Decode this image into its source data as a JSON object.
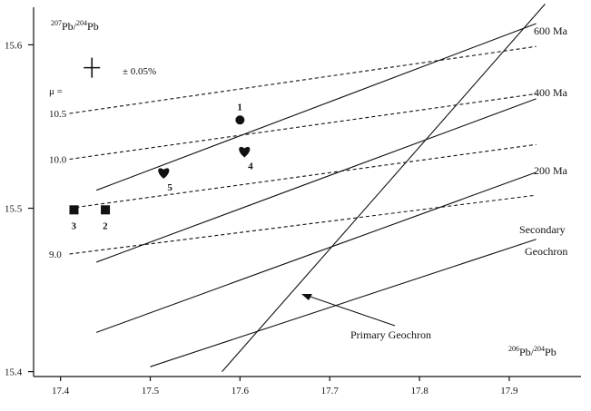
{
  "chart_data": {
    "type": "scatter",
    "xlim": [
      17.37,
      17.98
    ],
    "ylim": [
      15.397,
      15.623
    ],
    "x_ticks": [
      "17.4",
      "17.5",
      "17.6",
      "17.7",
      "17.8",
      "17.9"
    ],
    "y_ticks": [
      {
        "value": 15.4,
        "label": "15.4"
      },
      {
        "value": 15.5,
        "label": "15.5"
      },
      {
        "value": 15.6,
        "label": "15.6"
      }
    ],
    "ylabel": {
      "pre": "207",
      "main1": "Pb/",
      "pre2": "204",
      "main2": "Pb"
    },
    "xlabel": {
      "pre": "206",
      "main1": "Pb/",
      "pre2": "204",
      "main2": "Pb"
    },
    "error_label": "± 0.05%",
    "error_bar": {
      "x": 17.435,
      "y": 15.586
    },
    "mu_header": "μ =",
    "isochrons": [
      {
        "label": "600 Ma",
        "x": [
          17.44,
          17.93
        ],
        "y": [
          15.511,
          15.613
        ]
      },
      {
        "label": "400 Ma",
        "x": [
          17.44,
          17.93
        ],
        "y": [
          15.467,
          15.567
        ]
      },
      {
        "label": "200 Ma",
        "x": [
          17.44,
          17.93
        ],
        "y": [
          15.424,
          15.522
        ]
      },
      {
        "label": "",
        "x": [
          17.5,
          17.93
        ],
        "y": [
          15.403,
          15.481
        ]
      }
    ],
    "mu_lines": [
      {
        "label": "10.5",
        "x": [
          17.41,
          17.93
        ],
        "y": [
          15.558,
          15.599
        ]
      },
      {
        "label": "10.0",
        "x": [
          17.41,
          17.93
        ],
        "y": [
          15.53,
          15.57
        ]
      },
      {
        "label": "",
        "x": [
          17.41,
          17.93
        ],
        "y": [
          15.5,
          15.539
        ]
      },
      {
        "label": "9.0",
        "x": [
          17.41,
          17.93
        ],
        "y": [
          15.472,
          15.508
        ]
      }
    ],
    "primary_geochron": {
      "label": "Primary Geochron",
      "x": [
        17.58,
        17.94
      ],
      "y": [
        15.4,
        15.625
      ]
    },
    "secondary_geochron": {
      "label1": "Secondary",
      "label2": "Geochron"
    },
    "points": [
      {
        "label": "1",
        "x": 17.6,
        "y": 15.554,
        "marker": "circle"
      },
      {
        "label": "2",
        "x": 17.45,
        "y": 15.499,
        "marker": "square"
      },
      {
        "label": "3",
        "x": 17.415,
        "y": 15.499,
        "marker": "square"
      },
      {
        "label": "4",
        "x": 17.605,
        "y": 15.535,
        "marker": "heart"
      },
      {
        "label": "5",
        "x": 17.515,
        "y": 15.522,
        "marker": "heart"
      }
    ]
  }
}
